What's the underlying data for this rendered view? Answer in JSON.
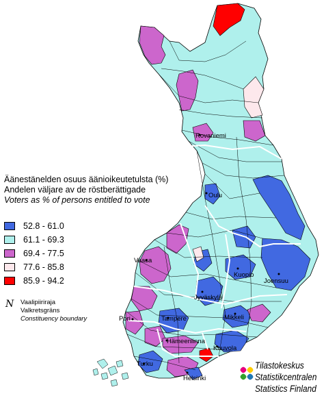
{
  "title": {
    "line1": "Äänestänelden osuus äänioikeutetulsta (%)",
    "line2": "Andelen väljare av de röstberättigade",
    "line3": "Voters as % of persons entitled to vote"
  },
  "legend": [
    {
      "label": "52.8 - 61.0",
      "color": "#4169e1"
    },
    {
      "label": "61.1 - 69.3",
      "color": "#aff0ec"
    },
    {
      "label": "69.4 - 77.5",
      "color": "#cc66cc"
    },
    {
      "label": "77.6 - 85.8",
      "color": "#fde8ec"
    },
    {
      "label": "85.9 - 94.2",
      "color": "#ff0000"
    }
  ],
  "boundary": {
    "icon": "N",
    "fi": "Vaalipiiriraja",
    "sv": "Valkretsgräns",
    "en": "Constituency boundary"
  },
  "cities": {
    "rovaniemi": "Rovaniemi",
    "oulu": "Oulu",
    "vaasa": "Vaasa",
    "kuopio": "Kuopio",
    "joensuu": "Joensuu",
    "jyvaskyla": "Jyväskylä",
    "mikkeli": "Mikkeli",
    "pori": "Pori",
    "tampere": "Tampere",
    "hameenlinna": "Hämeenlinna",
    "kouvola": "Kouvola",
    "turku": "Turku",
    "helsinki": "Helsinki"
  },
  "brand": {
    "line1": "Tilastokeskus",
    "line2": "Statistikcentralen",
    "line3": "Statistics Finland",
    "logo_colors": [
      "#e6007e",
      "#ffcc00",
      "#33a02c",
      "#1f78b4"
    ]
  },
  "colors": {
    "outline": "#000000",
    "constituency_boundary": "#ffffff",
    "low": "#4169e1",
    "mid": "#aff0ec",
    "high": "#cc66cc",
    "very_high": "#fde8ec",
    "max": "#ff0000"
  }
}
